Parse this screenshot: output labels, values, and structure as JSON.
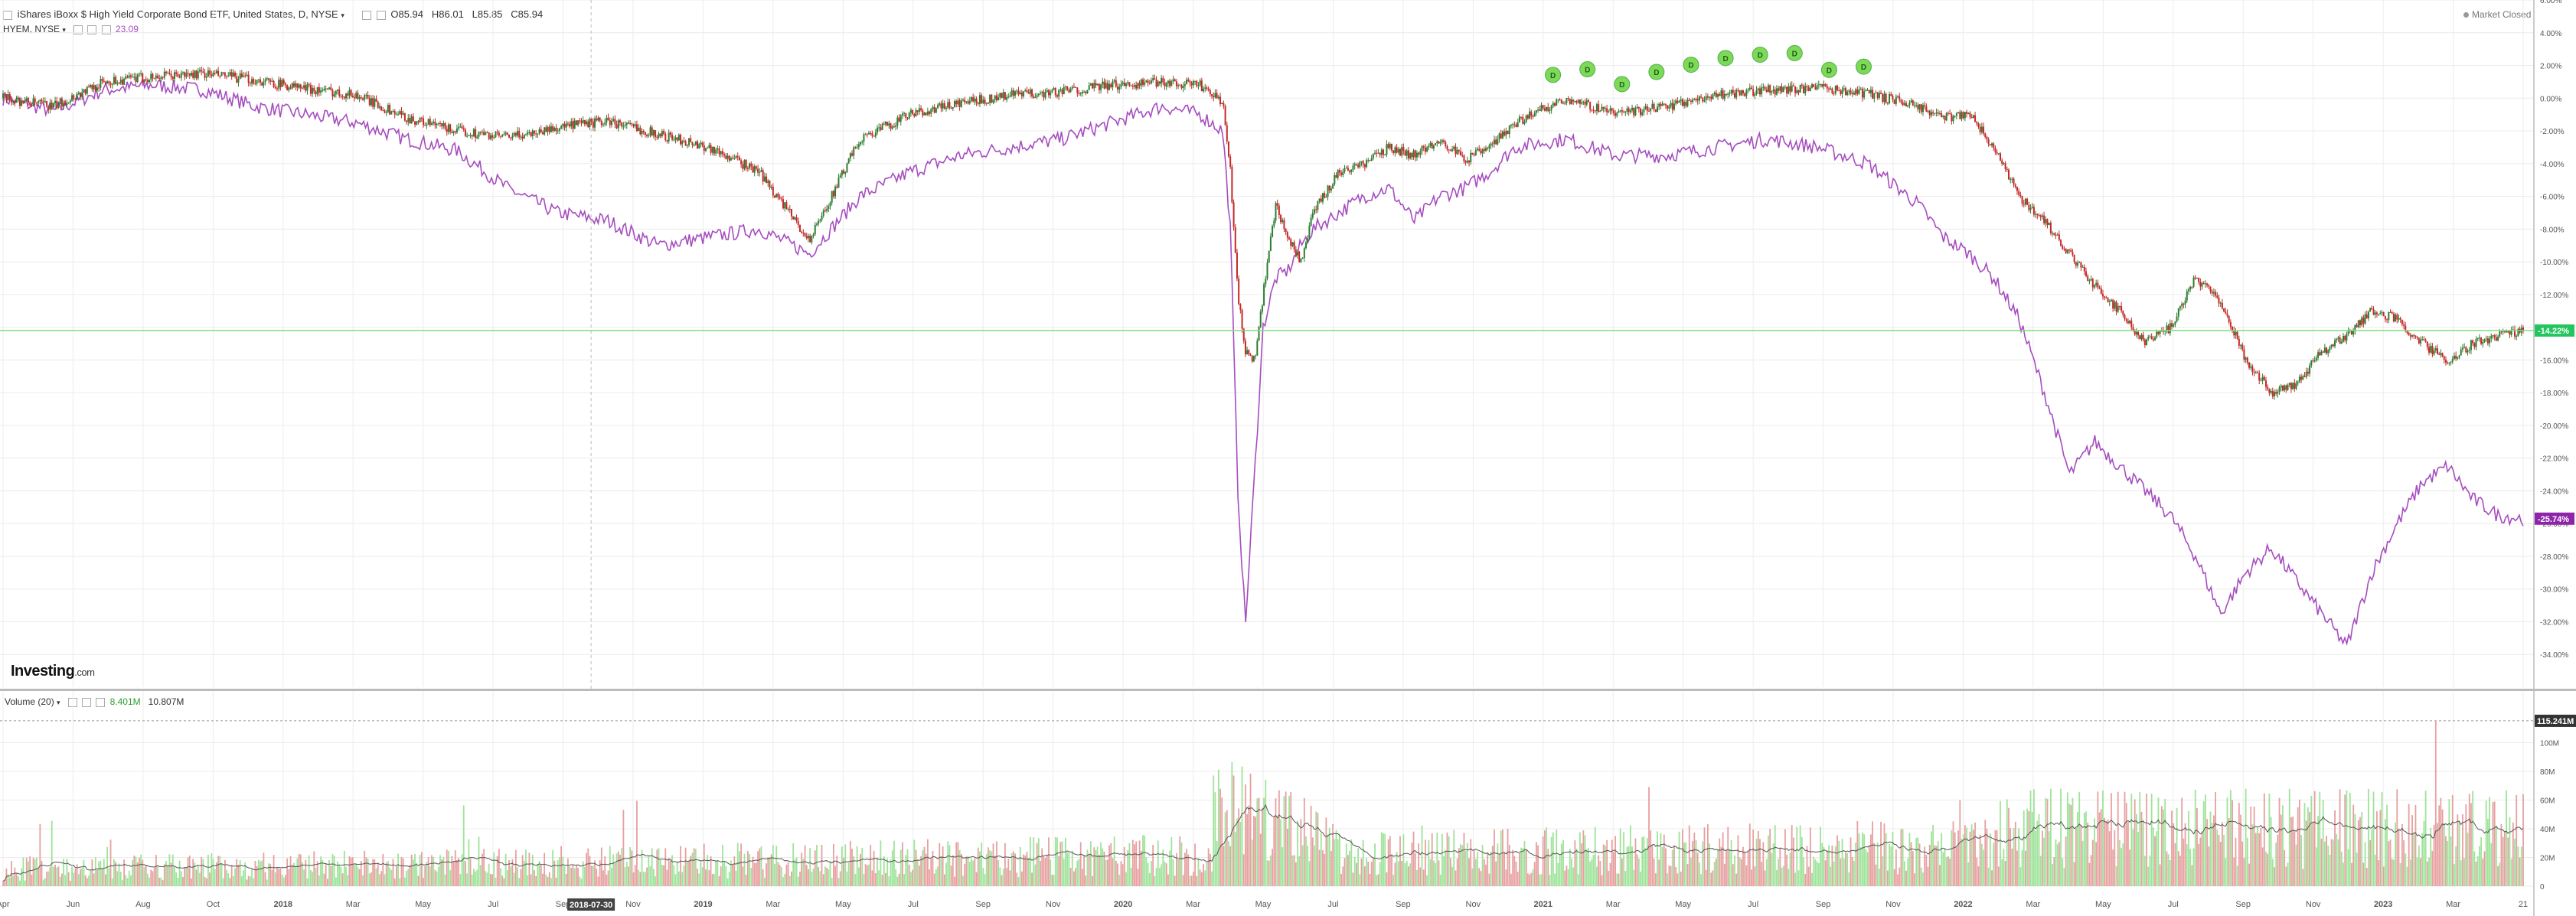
{
  "header": {
    "title": "iShares iBoxx $ High Yield Corporate Bond ETF, United States, D, NYSE",
    "ohlc": {
      "open": "O85.94",
      "high": "H86.01",
      "low": "L85.85",
      "close": "C85.94"
    },
    "compare_symbol": "HYEM, NYSE",
    "compare_value": "23.09",
    "market_status": "Market Closed"
  },
  "volume_header": {
    "label": "Volume (20)",
    "value1": "8.401M",
    "value2": "10.807M"
  },
  "watermark": {
    "brand": "Investing",
    "suffix": ".com"
  },
  "crosshair_date": "2018-07-30",
  "colors": {
    "up": "#2e7d32",
    "down": "#c62828",
    "compare_line": "#a64dbf",
    "current_line": "#7ee07e",
    "dividend_marker": "#7ed957",
    "vol_up": "#9fe39a",
    "vol_down": "#e7a0a0",
    "vol_ma": "#555555"
  },
  "chart_data": [
    {
      "type": "line",
      "title": "iShares iBoxx $ High Yield Corporate Bond ETF, United States, D, NYSE",
      "y_unit": "% change",
      "ylim": [
        -36,
        6
      ],
      "y_ticks": [
        "6.00%",
        "4.00%",
        "2.00%",
        "0.00%",
        "-2.00%",
        "-4.00%",
        "-6.00%",
        "-8.00%",
        "-10.00%",
        "-12.00%",
        "-14.00%",
        "-16.00%",
        "-18.00%",
        "-20.00%",
        "-22.00%",
        "-24.00%",
        "-26.00%",
        "-28.00%",
        "-30.00%",
        "-32.00%",
        "-34.00%"
      ],
      "x_ticks": [
        "Apr",
        "Jun",
        "Aug",
        "Oct",
        "2018",
        "Mar",
        "May",
        "Jul",
        "Sep",
        "Nov",
        "2019",
        "Mar",
        "May",
        "Jul",
        "Sep",
        "Nov",
        "2020",
        "Mar",
        "May",
        "Jul",
        "Sep",
        "Nov",
        "2021",
        "Mar",
        "May",
        "Jul",
        "Sep",
        "Nov",
        "2022",
        "Mar",
        "May",
        "Jul",
        "Sep",
        "Nov",
        "2023",
        "Mar",
        "21"
      ],
      "grid": true,
      "series": [
        {
          "name": "iShares iBoxx $ High Yield Corporate Bond ETF",
          "style": "candles",
          "last_label": "-14.22%",
          "x": [
            0,
            0.02,
            0.04,
            0.06,
            0.08,
            0.1,
            0.12,
            0.14,
            0.16,
            0.18,
            0.2,
            0.22,
            0.24,
            0.26,
            0.28,
            0.3,
            0.32,
            0.34,
            0.36,
            0.38,
            0.4,
            0.42,
            0.44,
            0.46,
            0.475,
            0.484,
            0.487,
            0.49,
            0.493,
            0.497,
            0.5,
            0.505,
            0.51,
            0.515,
            0.52,
            0.53,
            0.54,
            0.55,
            0.56,
            0.57,
            0.58,
            0.59,
            0.6,
            0.62,
            0.64,
            0.66,
            0.68,
            0.7,
            0.72,
            0.74,
            0.76,
            0.77,
            0.78,
            0.79,
            0.8,
            0.81,
            0.82,
            0.83,
            0.84,
            0.85,
            0.86,
            0.87,
            0.88,
            0.89,
            0.9,
            0.91,
            0.92,
            0.93,
            0.94,
            0.95,
            0.96,
            0.97,
            0.98,
            0.99,
            1.0
          ],
          "values": [
            0,
            -0.5,
            1,
            1.3,
            1.5,
            1.1,
            0.6,
            0.2,
            -1.2,
            -2.0,
            -2.4,
            -1.8,
            -1.4,
            -2.2,
            -3.0,
            -4.5,
            -8.7,
            -2.5,
            -1.0,
            -0.3,
            0.2,
            0.4,
            0.8,
            1.0,
            0.8,
            -0.3,
            -4.5,
            -12.0,
            -15.5,
            -16.0,
            -12.0,
            -6.5,
            -8.5,
            -10.0,
            -7.0,
            -4.5,
            -4.0,
            -3.0,
            -3.5,
            -2.5,
            -3.8,
            -3.0,
            -1.5,
            0.0,
            -1.0,
            -0.5,
            0.2,
            0.5,
            0.6,
            0.3,
            -0.5,
            -1.2,
            -0.9,
            -3.0,
            -6.0,
            -7.5,
            -9.5,
            -11.5,
            -13.0,
            -15.0,
            -14.0,
            -11.0,
            -12.5,
            -16.0,
            -18.0,
            -17.5,
            -15.5,
            -14.5,
            -13.0,
            -13.5,
            -15.0,
            -16.0,
            -15.0,
            -14.5,
            -14.2
          ]
        },
        {
          "name": "HYEM, NYSE",
          "style": "line",
          "last_label": "-25.74%",
          "x": [
            0,
            0.02,
            0.04,
            0.06,
            0.08,
            0.1,
            0.12,
            0.14,
            0.16,
            0.18,
            0.2,
            0.22,
            0.24,
            0.26,
            0.28,
            0.3,
            0.32,
            0.34,
            0.36,
            0.38,
            0.4,
            0.42,
            0.44,
            0.46,
            0.475,
            0.484,
            0.487,
            0.49,
            0.493,
            0.497,
            0.5,
            0.505,
            0.51,
            0.515,
            0.52,
            0.53,
            0.54,
            0.55,
            0.56,
            0.57,
            0.58,
            0.59,
            0.6,
            0.62,
            0.64,
            0.66,
            0.68,
            0.7,
            0.72,
            0.74,
            0.76,
            0.77,
            0.78,
            0.79,
            0.8,
            0.81,
            0.82,
            0.83,
            0.84,
            0.85,
            0.86,
            0.87,
            0.88,
            0.89,
            0.9,
            0.91,
            0.92,
            0.93,
            0.94,
            0.95,
            0.96,
            0.97,
            0.98,
            0.99,
            1.0
          ],
          "values": [
            0,
            -0.8,
            0.5,
            0.8,
            0.5,
            -0.5,
            -1.0,
            -1.5,
            -2.5,
            -3.2,
            -5.5,
            -7.0,
            -7.5,
            -9.0,
            -8.5,
            -8.0,
            -9.5,
            -6.0,
            -4.5,
            -3.5,
            -3.0,
            -2.5,
            -1.5,
            -0.5,
            -1.0,
            -2.0,
            -8.0,
            -24.0,
            -32.2,
            -22.0,
            -14.0,
            -11.0,
            -10.5,
            -9.0,
            -8.0,
            -7.0,
            -6.0,
            -5.5,
            -7.5,
            -6.0,
            -5.5,
            -4.5,
            -3.0,
            -2.5,
            -3.5,
            -3.5,
            -3.0,
            -2.5,
            -3.0,
            -4.0,
            -6.5,
            -8.5,
            -9.5,
            -11.0,
            -13.5,
            -18.0,
            -23.0,
            -21.0,
            -22.5,
            -24.0,
            -25.5,
            -28.0,
            -31.5,
            -29.0,
            -27.5,
            -29.5,
            -31.5,
            -33.5,
            -29.0,
            -26.0,
            -23.5,
            -22.5,
            -24.5,
            -25.5,
            -25.7
          ]
        }
      ],
      "dividend_markers": {
        "label": "D",
        "count": 10
      }
    },
    {
      "type": "bar",
      "title": "Volume (20)",
      "y_ticks": [
        "100M",
        "80M",
        "60M",
        "40M",
        "20M",
        "0"
      ],
      "ylim": [
        0,
        120
      ],
      "max_label": "115.241M",
      "series": [
        {
          "name": "Volume",
          "style": "bars"
        },
        {
          "name": "MA 20",
          "style": "line"
        }
      ]
    }
  ]
}
